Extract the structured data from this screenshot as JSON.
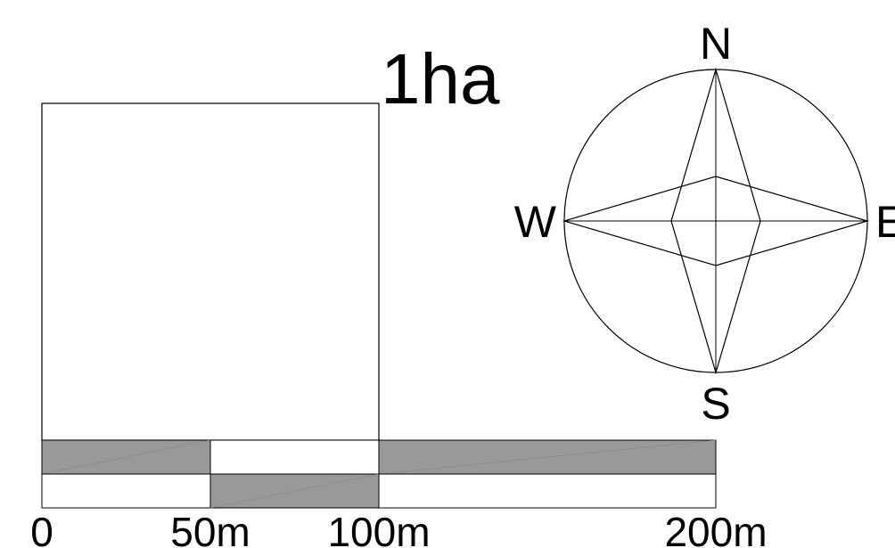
{
  "title": "1ha",
  "compass": {
    "north": "N",
    "south": "S",
    "east": "E",
    "west": "W"
  },
  "scale_bar": {
    "labels": [
      "0",
      "50m",
      "100m",
      "200m"
    ],
    "segment_color": "#999999"
  },
  "colors": {
    "line": "#000000",
    "fill_gray": "#999999",
    "background": "#ffffff"
  }
}
